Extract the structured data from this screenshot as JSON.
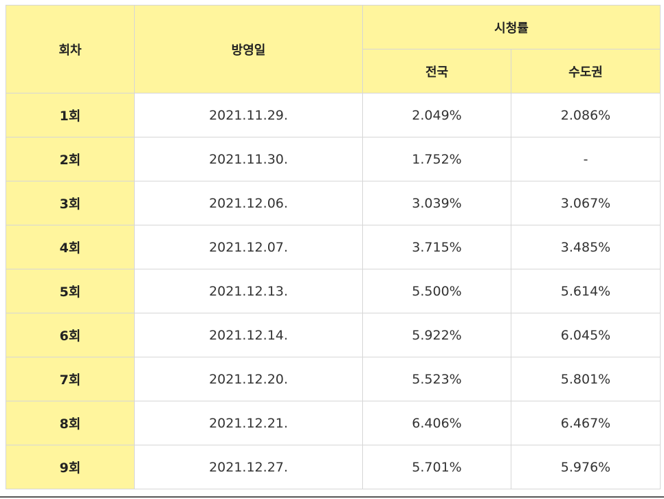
{
  "header": {
    "episode": "회차",
    "air_date": "방영일",
    "ratings": "시청률",
    "nationwide": "전국",
    "capital_area": "수도권"
  },
  "rows": [
    {
      "episode": "1회",
      "date": "2021.11.29.",
      "nationwide": "2.049%",
      "capital": "2.086%"
    },
    {
      "episode": "2회",
      "date": "2021.11.30.",
      "nationwide": "1.752%",
      "capital": "-"
    },
    {
      "episode": "3회",
      "date": "2021.12.06.",
      "nationwide": "3.039%",
      "capital": "3.067%"
    },
    {
      "episode": "4회",
      "date": "2021.12.07.",
      "nationwide": "3.715%",
      "capital": "3.485%"
    },
    {
      "episode": "5회",
      "date": "2021.12.13.",
      "nationwide": "5.500%",
      "capital": "5.614%"
    },
    {
      "episode": "6회",
      "date": "2021.12.14.",
      "nationwide": "5.922%",
      "capital": "6.045%"
    },
    {
      "episode": "7회",
      "date": "2021.12.20.",
      "nationwide": "5.523%",
      "capital": "5.801%"
    },
    {
      "episode": "8회",
      "date": "2021.12.21.",
      "nationwide": "6.406%",
      "capital": "6.467%"
    },
    {
      "episode": "9회",
      "date": "2021.12.27.",
      "nationwide": "5.701%",
      "capital": "5.976%"
    }
  ],
  "colors": {
    "header_bg": "#fff59d",
    "lowest_rating": "#e8001c",
    "highest_rating": "#1a74c2"
  }
}
